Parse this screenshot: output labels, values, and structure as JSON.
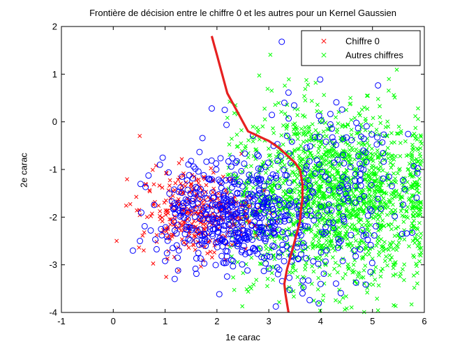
{
  "chart_data": {
    "type": "scatter",
    "title": "Frontière de décision entre le chiffre 0 et les autres pour un Kernel Gaussien",
    "xlabel": "1e carac",
    "ylabel": "2e carac",
    "xlim": [
      -1,
      6
    ],
    "ylim": [
      -4,
      2
    ],
    "xticks": [
      "-1",
      "0",
      "1",
      "2",
      "3",
      "4",
      "5",
      "6"
    ],
    "yticks": [
      "-4",
      "-3",
      "-2",
      "-1",
      "0",
      "1",
      "2"
    ],
    "grid": false,
    "legend_position": "top-right",
    "series": [
      {
        "name": "Chiffre 0",
        "marker": "x",
        "color": "#ff0000",
        "approx_center": [
          1.6,
          -1.9
        ],
        "approx_spread": [
          0.55,
          0.45
        ],
        "approx_count": 350
      },
      {
        "name": "Autres chiffres",
        "marker": "x",
        "color": "#00ff00",
        "approx_center": [
          4.3,
          -1.6
        ],
        "approx_spread": [
          1.0,
          0.9
        ],
        "approx_count": 1800
      },
      {
        "marker": "o",
        "color": "#0000ff",
        "approx_center": [
          2.6,
          -1.9
        ],
        "approx_spread": [
          1.3,
          0.7
        ],
        "approx_count": 700
      },
      {
        "type": "line",
        "color": "#e62020",
        "x": [
          1.9,
          1.95,
          2.0,
          2.05,
          2.1,
          2.15,
          2.2,
          2.3,
          2.4,
          2.5,
          2.6,
          2.8,
          3.0,
          3.2,
          3.35,
          3.5,
          3.6,
          3.65,
          3.65,
          3.62,
          3.6,
          3.55,
          3.5,
          3.45,
          3.4,
          3.35,
          3.3,
          3.32,
          3.35,
          3.38
        ],
        "y": [
          1.8,
          1.6,
          1.4,
          1.2,
          1.0,
          0.8,
          0.6,
          0.4,
          0.2,
          0.0,
          -0.2,
          -0.3,
          -0.4,
          -0.55,
          -0.7,
          -0.85,
          -1.0,
          -1.3,
          -1.6,
          -1.85,
          -2.1,
          -2.3,
          -2.5,
          -2.7,
          -2.9,
          -3.1,
          -3.4,
          -3.6,
          -3.8,
          -4.0
        ]
      }
    ]
  }
}
